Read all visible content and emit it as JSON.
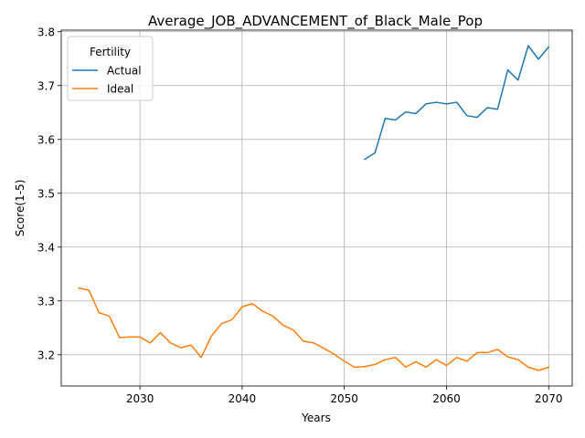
{
  "chart_data": {
    "type": "line",
    "title": "Average_JOB_ADVANCEMENT_of_Black_Male_Pop",
    "xlabel": "Years",
    "ylabel": "Score(1-5)",
    "xlim": [
      2022.3,
      2072.3
    ],
    "ylim": [
      3.142,
      3.803
    ],
    "xticks": [
      2030,
      2040,
      2050,
      2060,
      2070
    ],
    "yticks": [
      3.2,
      3.3,
      3.4,
      3.5,
      3.6,
      3.7,
      3.8
    ],
    "xtick_labels": [
      "2030",
      "2040",
      "2050",
      "2060",
      "2070"
    ],
    "ytick_labels": [
      "3.2",
      "3.3",
      "3.4",
      "3.5",
      "3.6",
      "3.7",
      "3.8"
    ],
    "grid": true,
    "legend": {
      "title": "Fertility",
      "placement": "upper-left"
    },
    "series": [
      {
        "name": "Actual",
        "color": "#1f77b4",
        "x": [
          2052,
          2053,
          2054,
          2055,
          2056,
          2057,
          2058,
          2059,
          2060,
          2061,
          2062,
          2063,
          2064,
          2065,
          2066,
          2067,
          2068,
          2069,
          2070
        ],
        "y": [
          3.563,
          3.575,
          3.639,
          3.636,
          3.651,
          3.648,
          3.666,
          3.669,
          3.666,
          3.669,
          3.644,
          3.641,
          3.659,
          3.656,
          3.729,
          3.71,
          3.774,
          3.749,
          3.772
        ]
      },
      {
        "name": "Ideal",
        "color": "#ff7f0e",
        "x": [
          2024,
          2025,
          2026,
          2027,
          2028,
          2029,
          2030,
          2031,
          2032,
          2033,
          2034,
          2035,
          2036,
          2037,
          2038,
          2039,
          2040,
          2041,
          2042,
          2043,
          2044,
          2045,
          2046,
          2047,
          2048,
          2049,
          2050,
          2051,
          2052,
          2053,
          2054,
          2055,
          2056,
          2057,
          2058,
          2059,
          2060,
          2061,
          2062,
          2063,
          2064,
          2065,
          2066,
          2067,
          2068,
          2069,
          2070
        ],
        "y": [
          3.324,
          3.32,
          3.278,
          3.272,
          3.232,
          3.233,
          3.233,
          3.222,
          3.241,
          3.222,
          3.213,
          3.218,
          3.195,
          3.235,
          3.258,
          3.265,
          3.289,
          3.295,
          3.281,
          3.272,
          3.255,
          3.246,
          3.225,
          3.222,
          3.212,
          3.201,
          3.188,
          3.177,
          3.178,
          3.182,
          3.191,
          3.195,
          3.177,
          3.187,
          3.177,
          3.191,
          3.18,
          3.195,
          3.188,
          3.204,
          3.204,
          3.21,
          3.196,
          3.191,
          3.177,
          3.171,
          3.177
        ]
      }
    ]
  }
}
